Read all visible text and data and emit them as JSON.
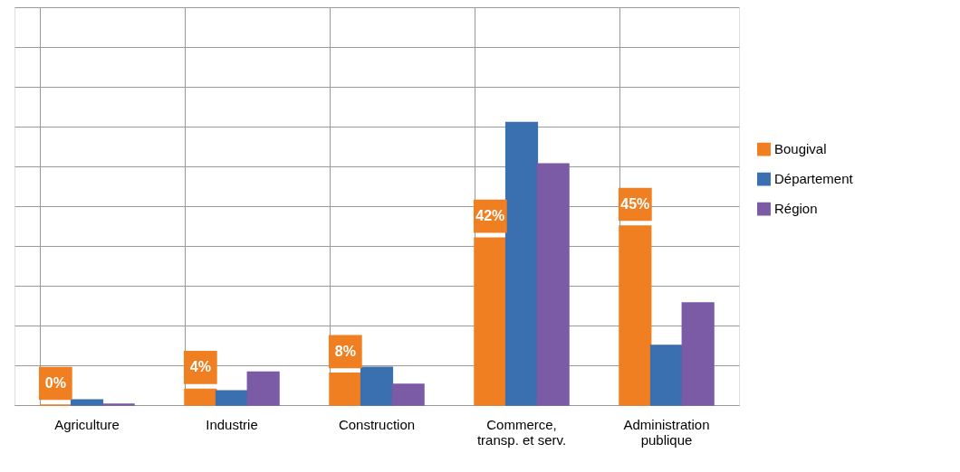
{
  "chart_data": {
    "type": "bar",
    "categories": [
      "Agriculture",
      "Industrie",
      "Construction",
      "Commerce,\ntransp. et serv.",
      "Administration\npublique"
    ],
    "series": [
      {
        "name": "Bougival",
        "color": "#f07f22",
        "values": [
          0,
          4,
          8,
          42,
          45
        ],
        "value_labels": [
          "0%",
          "4%",
          "8%",
          "42%",
          "45%"
        ]
      },
      {
        "name": "Département",
        "color": "#3a6fb0",
        "values": [
          1.3,
          3.6,
          9.5,
          71,
          15
        ]
      },
      {
        "name": "Région",
        "color": "#7b5aa6",
        "values": [
          0.2,
          8.3,
          5.2,
          60.6,
          25.7
        ]
      }
    ],
    "ylim": [
      0,
      100
    ],
    "yticks": [
      {
        "value": 0,
        "label": null
      },
      {
        "value": 10,
        "label": null
      },
      {
        "value": 20,
        "label": null
      },
      {
        "value": 30,
        "label": null
      },
      {
        "value": 40,
        "label": null
      },
      {
        "value": 50,
        "label": null
      },
      {
        "value": 60,
        "label": null
      },
      {
        "value": 70,
        "label": null
      },
      {
        "value": 80,
        "label": null
      },
      {
        "value": 90,
        "label": null
      },
      {
        "value": 100,
        "label": null
      }
    ],
    "tick_labels": "x",
    "grid": true,
    "legend": "right"
  }
}
